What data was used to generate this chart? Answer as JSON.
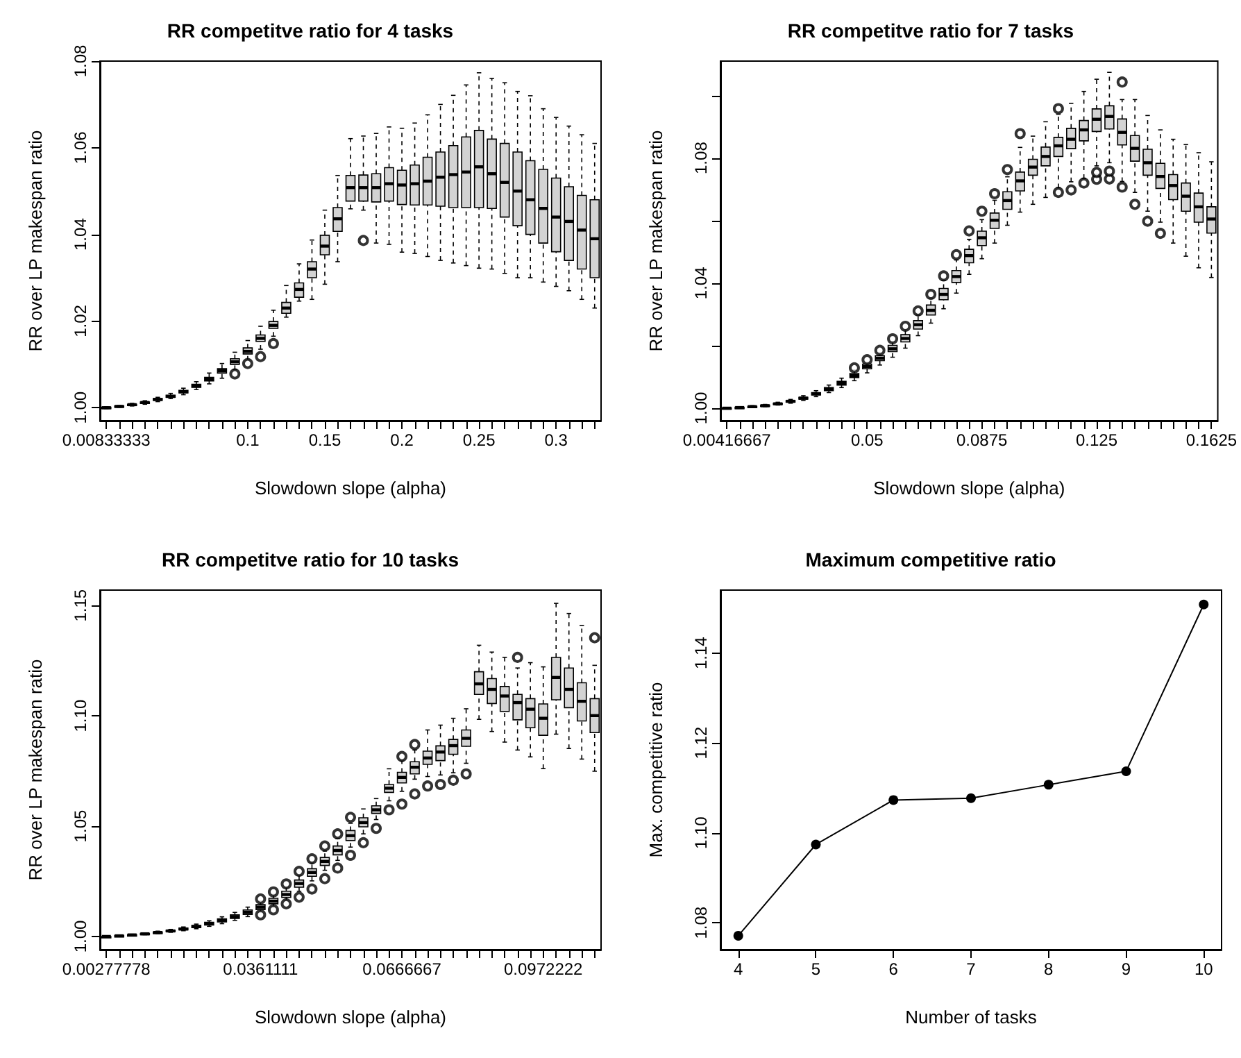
{
  "chart_data": [
    {
      "type": "box",
      "title": "RR competitve ratio for 4 tasks",
      "xlabel": "Slowdown slope (alpha)",
      "ylabel": "RR over LP makespan ratio",
      "categories": [
        "0.00833333",
        null,
        null,
        null,
        null,
        null,
        null,
        null,
        null,
        null,
        null,
        "0.1",
        null,
        null,
        null,
        null,
        null,
        "0.15",
        null,
        null,
        null,
        null,
        null,
        "0.2",
        null,
        null,
        null,
        null,
        null,
        "0.25",
        null,
        null,
        null,
        null,
        null,
        "0.3",
        null,
        null,
        null
      ],
      "ylim": [
        0.997,
        1.08
      ],
      "yticks": [
        {
          "value": 1,
          "label": "1.00"
        },
        1.02,
        1.04,
        1.06,
        1.08
      ],
      "series": [
        {
          "color": "#d3d3d3",
          "boxes": [
            {
              "low": 0.9998,
              "q1": 0.9999,
              "median": 1.0,
              "q3": 1.0001,
              "high": 1.0002
            },
            {
              "low": 1.0001,
              "q1": 1.0002,
              "median": 1.0003,
              "q3": 1.0004,
              "high": 1.0005
            },
            {
              "low": 1.0004,
              "q1": 1.0005,
              "median": 1.0007,
              "q3": 1.0008,
              "high": 1.001
            },
            {
              "low": 1.0008,
              "q1": 1.001,
              "median": 1.0012,
              "q3": 1.0013,
              "high": 1.0016
            },
            {
              "low": 1.0014,
              "q1": 1.0017,
              "median": 1.0019,
              "q3": 1.0021,
              "high": 1.0024
            },
            {
              "low": 1.0021,
              "q1": 1.0024,
              "median": 1.0026,
              "q3": 1.0029,
              "high": 1.0033
            },
            {
              "low": 1.003,
              "q1": 1.0034,
              "median": 1.0037,
              "q3": 1.004,
              "high": 1.0045
            },
            {
              "low": 1.0042,
              "q1": 1.0047,
              "median": 1.005,
              "q3": 1.0054,
              "high": 1.006
            },
            {
              "low": 1.0055,
              "q1": 1.0062,
              "median": 1.0066,
              "q3": 1.007,
              "high": 1.008
            },
            {
              "low": 1.0068,
              "q1": 1.008,
              "median": 1.0085,
              "q3": 1.009,
              "high": 1.0102
            },
            {
              "low": 1.0088,
              "q1": 1.01,
              "median": 1.0106,
              "q3": 1.0113,
              "high": 1.0128,
              "outliers": [
                1.0078
              ]
            },
            {
              "low": 1.011,
              "q1": 1.0124,
              "median": 1.013,
              "q3": 1.0138,
              "high": 1.0155,
              "outliers": [
                1.0102
              ]
            },
            {
              "low": 1.0135,
              "q1": 1.0153,
              "median": 1.016,
              "q3": 1.0168,
              "high": 1.0188,
              "outliers": [
                1.0118
              ]
            },
            {
              "low": 1.0165,
              "q1": 1.0183,
              "median": 1.019,
              "q3": 1.0199,
              "high": 1.0225,
              "outliers": [
                1.0148
              ]
            },
            {
              "low": 1.0209,
              "q1": 1.0218,
              "median": 1.023,
              "q3": 1.0243,
              "high": 1.0282
            },
            {
              "low": 1.0246,
              "q1": 1.0255,
              "median": 1.0273,
              "q3": 1.0288,
              "high": 1.0332
            },
            {
              "low": 1.025,
              "q1": 1.03,
              "median": 1.032,
              "q3": 1.0337,
              "high": 1.0387
            },
            {
              "low": 1.0285,
              "q1": 1.0353,
              "median": 1.0373,
              "q3": 1.0398,
              "high": 1.0456
            },
            {
              "low": 1.0337,
              "q1": 1.0407,
              "median": 1.0436,
              "q3": 1.0462,
              "high": 1.0536
            },
            {
              "low": 1.0459,
              "q1": 1.0477,
              "median": 1.0508,
              "q3": 1.0536,
              "high": 1.0621
            },
            {
              "low": 1.0456,
              "q1": 1.0477,
              "median": 1.0508,
              "q3": 1.0537,
              "high": 1.0627,
              "outliers": [
                1.0386
              ]
            },
            {
              "low": 1.038,
              "q1": 1.0475,
              "median": 1.0508,
              "q3": 1.054,
              "high": 1.0633
            },
            {
              "low": 1.0377,
              "q1": 1.0477,
              "median": 1.0517,
              "q3": 1.0554,
              "high": 1.0648
            },
            {
              "low": 1.0359,
              "q1": 1.0469,
              "median": 1.0514,
              "q3": 1.0548,
              "high": 1.0645
            },
            {
              "low": 1.0356,
              "q1": 1.0468,
              "median": 1.0517,
              "q3": 1.056,
              "high": 1.0657
            },
            {
              "low": 1.0349,
              "q1": 1.0468,
              "median": 1.0523,
              "q3": 1.0578,
              "high": 1.0676
            },
            {
              "low": 1.034,
              "q1": 1.0465,
              "median": 1.0532,
              "q3": 1.059,
              "high": 1.07
            },
            {
              "low": 1.0334,
              "q1": 1.0462,
              "median": 1.0538,
              "q3": 1.0605,
              "high": 1.0721
            },
            {
              "low": 1.0328,
              "q1": 1.0462,
              "median": 1.0544,
              "q3": 1.0625,
              "high": 1.0745
            },
            {
              "low": 1.0322,
              "q1": 1.0462,
              "median": 1.0556,
              "q3": 1.064,
              "high": 1.0773
            },
            {
              "low": 1.032,
              "q1": 1.046,
              "median": 1.054,
              "q3": 1.062,
              "high": 1.076
            },
            {
              "low": 1.031,
              "q1": 1.044,
              "median": 1.052,
              "q3": 1.061,
              "high": 1.075
            },
            {
              "low": 1.03,
              "q1": 1.042,
              "median": 1.05,
              "q3": 1.059,
              "high": 1.073
            },
            {
              "low": 1.03,
              "q1": 1.04,
              "median": 1.048,
              "q3": 1.057,
              "high": 1.072
            },
            {
              "low": 1.029,
              "q1": 1.038,
              "median": 1.046,
              "q3": 1.055,
              "high": 1.069
            },
            {
              "low": 1.028,
              "q1": 1.036,
              "median": 1.044,
              "q3": 1.053,
              "high": 1.067
            },
            {
              "low": 1.027,
              "q1": 1.034,
              "median": 1.043,
              "q3": 1.051,
              "high": 1.065
            },
            {
              "low": 1.025,
              "q1": 1.032,
              "median": 1.041,
              "q3": 1.049,
              "high": 1.063
            },
            {
              "low": 1.023,
              "q1": 1.03,
              "median": 1.039,
              "q3": 1.048,
              "high": 1.061
            }
          ]
        }
      ]
    },
    {
      "type": "box",
      "title": "RR competitve ratio for 7 tasks",
      "xlabel": "Slowdown slope (alpha)",
      "ylabel": "RR over LP makespan ratio",
      "categories": [
        "0.00416667",
        null,
        null,
        null,
        null,
        null,
        null,
        null,
        null,
        null,
        null,
        "0.05",
        null,
        null,
        null,
        null,
        null,
        null,
        null,
        null,
        "0.0875",
        null,
        null,
        null,
        null,
        null,
        null,
        null,
        null,
        "0.125",
        null,
        null,
        null,
        null,
        null,
        null,
        null,
        null,
        "0.1625"
      ],
      "ylim": [
        0.996,
        1.111
      ],
      "yticks": [
        {
          "value": 1,
          "label": "1.00"
        },
        {
          "value": 1.02,
          "label": null
        },
        1.04,
        {
          "value": 1.06,
          "label": null
        },
        1.08,
        {
          "value": 1.1,
          "label": null
        }
      ],
      "series": [
        {
          "color": "#d3d3d3",
          "boxes": [
            {
              "low": 0.9999,
              "q1": 1.0,
              "median": 1.0,
              "q3": 1.0001,
              "high": 1.0002
            },
            {
              "low": 1.0,
              "q1": 1.0001,
              "median": 1.0002,
              "q3": 1.0003,
              "high": 1.0004
            },
            {
              "low": 1.0002,
              "q1": 1.0004,
              "median": 1.0005,
              "q3": 1.0006,
              "high": 1.0008
            },
            {
              "low": 1.0005,
              "q1": 1.0007,
              "median": 1.0008,
              "q3": 1.001,
              "high": 1.0012
            },
            {
              "low": 1.001,
              "q1": 1.0012,
              "median": 1.0014,
              "q3": 1.0016,
              "high": 1.0019
            },
            {
              "low": 1.0016,
              "q1": 1.002,
              "median": 1.0022,
              "q3": 1.0024,
              "high": 1.0028
            },
            {
              "low": 1.0025,
              "q1": 1.0029,
              "median": 1.0032,
              "q3": 1.0035,
              "high": 1.004
            },
            {
              "low": 1.0037,
              "q1": 1.0042,
              "median": 1.0046,
              "q3": 1.005,
              "high": 1.0056
            },
            {
              "low": 1.005,
              "q1": 1.0056,
              "median": 1.0061,
              "q3": 1.0066,
              "high": 1.0074
            },
            {
              "low": 1.0066,
              "q1": 1.0074,
              "median": 1.008,
              "q3": 1.0086,
              "high": 1.0096
            },
            {
              "low": 1.0088,
              "q1": 1.0098,
              "median": 1.0104,
              "q3": 1.0111,
              "high": 1.0122,
              "outliers": [
                1.0129
              ]
            },
            {
              "low": 1.0113,
              "q1": 1.0126,
              "median": 1.0133,
              "q3": 1.0141,
              "high": 1.0147,
              "outliers": [
                1.0155
              ]
            },
            {
              "low": 1.0138,
              "q1": 1.0152,
              "median": 1.016,
              "q3": 1.0168,
              "high": 1.0177,
              "outliers": [
                1.0185
              ]
            },
            {
              "low": 1.0163,
              "q1": 1.0181,
              "median": 1.019,
              "q3": 1.0201,
              "high": 1.0213,
              "outliers": [
                1.0222
              ]
            },
            {
              "low": 1.0192,
              "q1": 1.0212,
              "median": 1.0223,
              "q3": 1.0235,
              "high": 1.0252,
              "outliers": [
                1.0262
              ]
            },
            {
              "low": 1.0232,
              "q1": 1.0253,
              "median": 1.0267,
              "q3": 1.028,
              "high": 1.0298,
              "outliers": [
                1.0311
              ]
            },
            {
              "low": 1.0272,
              "q1": 1.0298,
              "median": 1.0313,
              "q3": 1.033,
              "high": 1.0352,
              "outliers": [
                1.0364
              ]
            },
            {
              "low": 1.0318,
              "q1": 1.0347,
              "median": 1.0364,
              "q3": 1.0383,
              "high": 1.0409,
              "outliers": [
                1.0423
              ]
            },
            {
              "low": 1.0368,
              "q1": 1.0402,
              "median": 1.0421,
              "q3": 1.044,
              "high": 1.0474,
              "outliers": [
                1.0491
              ]
            },
            {
              "low": 1.0428,
              "q1": 1.0465,
              "median": 1.0488,
              "q3": 1.0508,
              "high": 1.054,
              "outliers": [
                1.0567
              ]
            },
            {
              "low": 1.0478,
              "q1": 1.052,
              "median": 1.0545,
              "q3": 1.0566,
              "high": 1.0603,
              "outliers": [
                1.063
              ]
            },
            {
              "low": 1.0528,
              "q1": 1.0575,
              "median": 1.0601,
              "q3": 1.0624,
              "high": 1.0665,
              "outliers": [
                1.0686
              ]
            },
            {
              "low": 1.0585,
              "q1": 1.0636,
              "median": 1.0664,
              "q3": 1.0692,
              "high": 1.074,
              "outliers": [
                1.0763
              ]
            },
            {
              "low": 1.0627,
              "q1": 1.0695,
              "median": 1.0727,
              "q3": 1.0755,
              "high": 1.0834,
              "outliers": [
                1.0878
              ]
            },
            {
              "low": 1.0652,
              "q1": 1.0745,
              "median": 1.0771,
              "q3": 1.0796,
              "high": 1.087
            },
            {
              "low": 1.0674,
              "q1": 1.0775,
              "median": 1.0805,
              "q3": 1.0835,
              "high": 1.0916
            },
            {
              "low": 1.0705,
              "q1": 1.0805,
              "median": 1.0839,
              "q3": 1.0866,
              "high": 1.094,
              "outliers": [
                1.069,
                1.0958
              ]
            },
            {
              "low": 1.0724,
              "q1": 1.083,
              "median": 1.086,
              "q3": 1.0895,
              "high": 1.0975,
              "outliers": [
                1.0698
              ]
            },
            {
              "low": 1.0735,
              "q1": 1.0855,
              "median": 1.089,
              "q3": 1.092,
              "high": 1.1013,
              "outliers": [
                1.072
              ]
            },
            {
              "low": 1.0775,
              "q1": 1.0885,
              "median": 1.0924,
              "q3": 1.0957,
              "high": 1.1052,
              "outliers": [
                1.0732,
                1.0754
              ]
            },
            {
              "low": 1.0785,
              "q1": 1.0893,
              "median": 1.0933,
              "q3": 1.0967,
              "high": 1.1074,
              "outliers": [
                1.0733,
                1.0758
              ]
            },
            {
              "low": 1.0725,
              "q1": 1.0842,
              "median": 1.0882,
              "q3": 1.0925,
              "high": 1.0987,
              "outliers": [
                1.0707,
                1.1043
              ]
            },
            {
              "low": 1.069,
              "q1": 1.079,
              "median": 1.0831,
              "q3": 1.0872,
              "high": 1.0987,
              "outliers": [
                1.0652
              ]
            },
            {
              "low": 1.063,
              "q1": 1.0745,
              "median": 1.0785,
              "q3": 1.0828,
              "high": 1.0936,
              "outliers": [
                1.0598
              ]
            },
            {
              "low": 1.0595,
              "q1": 1.0703,
              "median": 1.0741,
              "q3": 1.0783,
              "high": 1.089,
              "outliers": [
                1.0559
              ]
            },
            {
              "low": 1.0528,
              "q1": 1.0667,
              "median": 1.0712,
              "q3": 1.0747,
              "high": 1.086
            },
            {
              "low": 1.0486,
              "q1": 1.063,
              "median": 1.0678,
              "q3": 1.072,
              "high": 1.0843
            },
            {
              "low": 1.0449,
              "q1": 1.0595,
              "median": 1.0644,
              "q3": 1.0688,
              "high": 1.0817
            },
            {
              "low": 1.0418,
              "q1": 1.056,
              "median": 1.0605,
              "q3": 1.0644,
              "high": 1.0788
            }
          ]
        }
      ]
    },
    {
      "type": "box",
      "title": "RR competitve ratio for 10 tasks",
      "xlabel": "Slowdown slope (alpha)",
      "ylabel": "RR over LP makespan ratio",
      "categories": [
        "0.00277778",
        null,
        null,
        null,
        null,
        null,
        null,
        null,
        null,
        null,
        null,
        null,
        "0.0361111",
        null,
        null,
        null,
        null,
        null,
        null,
        null,
        null,
        null,
        null,
        "0.0666667",
        null,
        null,
        null,
        null,
        null,
        null,
        null,
        null,
        null,
        null,
        "0.0972222",
        null,
        null,
        null,
        null
      ],
      "ylim": [
        0.994,
        1.157
      ],
      "yticks": [
        {
          "value": 1,
          "label": "1.00"
        },
        1.05,
        {
          "value": 1.1,
          "label": "1.10"
        },
        1.15
      ],
      "series": [
        {
          "color": "#d3d3d3",
          "boxes": [
            {
              "low": 0.9999,
              "q1": 1.0,
              "median": 1.0,
              "q3": 1.0,
              "high": 1.0001
            },
            {
              "low": 1.0001,
              "q1": 1.0002,
              "median": 1.0003,
              "q3": 1.0004,
              "high": 1.0005
            },
            {
              "low": 1.0004,
              "q1": 1.0006,
              "median": 1.0007,
              "q3": 1.0008,
              "high": 1.001
            },
            {
              "low": 1.0008,
              "q1": 1.001,
              "median": 1.0012,
              "q3": 1.0014,
              "high": 1.0016
            },
            {
              "low": 1.0013,
              "q1": 1.0016,
              "median": 1.0018,
              "q3": 1.002,
              "high": 1.0024
            },
            {
              "low": 1.0019,
              "q1": 1.0022,
              "median": 1.0025,
              "q3": 1.0028,
              "high": 1.0032
            },
            {
              "low": 1.0026,
              "q1": 1.003,
              "median": 1.0034,
              "q3": 1.0038,
              "high": 1.0043
            },
            {
              "low": 1.0035,
              "q1": 1.004,
              "median": 1.0045,
              "q3": 1.005,
              "high": 1.0056
            },
            {
              "low": 1.0046,
              "q1": 1.0052,
              "median": 1.0058,
              "q3": 1.0064,
              "high": 1.0071
            },
            {
              "low": 1.0058,
              "q1": 1.0066,
              "median": 1.0073,
              "q3": 1.008,
              "high": 1.0089
            },
            {
              "low": 1.0073,
              "q1": 1.0082,
              "median": 1.009,
              "q3": 1.0098,
              "high": 1.0109
            },
            {
              "low": 1.009,
              "q1": 1.01,
              "median": 1.011,
              "q3": 1.012,
              "high": 1.0133
            },
            {
              "low": 1.011,
              "q1": 1.0122,
              "median": 1.0133,
              "q3": 1.0144,
              "high": 1.016,
              "outliers": [
                1.0098,
                1.017
              ]
            },
            {
              "low": 1.0134,
              "q1": 1.0148,
              "median": 1.016,
              "q3": 1.0173,
              "high": 1.019,
              "outliers": [
                1.0121,
                1.0202
              ]
            },
            {
              "low": 1.0162,
              "q1": 1.0177,
              "median": 1.019,
              "q3": 1.0205,
              "high": 1.0224,
              "outliers": [
                1.0148,
                1.0238
              ]
            },
            {
              "low": 1.0205,
              "q1": 1.0223,
              "median": 1.024,
              "q3": 1.0256,
              "high": 1.0278,
              "outliers": [
                1.0178,
                1.0295
              ]
            },
            {
              "low": 1.0252,
              "q1": 1.0273,
              "median": 1.029,
              "q3": 1.0307,
              "high": 1.0333,
              "outliers": [
                1.0215,
                1.0352
              ]
            },
            {
              "low": 1.03,
              "q1": 1.0322,
              "median": 1.034,
              "q3": 1.0358,
              "high": 1.0387,
              "outliers": [
                1.0262,
                1.041
              ]
            },
            {
              "low": 1.0345,
              "q1": 1.037,
              "median": 1.039,
              "q3": 1.041,
              "high": 1.0443,
              "outliers": [
                1.031,
                1.0465
              ]
            },
            {
              "low": 1.0405,
              "q1": 1.0435,
              "median": 1.0457,
              "q3": 1.048,
              "high": 1.0513,
              "outliers": [
                1.0368,
                1.054
              ]
            },
            {
              "low": 1.0465,
              "q1": 1.0497,
              "median": 1.0516,
              "q3": 1.0538,
              "high": 1.0578,
              "outliers": [
                1.0425
              ]
            },
            {
              "low": 1.053,
              "q1": 1.0558,
              "median": 1.0574,
              "q3": 1.0592,
              "high": 1.0625,
              "outliers": [
                1.049
              ]
            },
            {
              "low": 1.0615,
              "q1": 1.0653,
              "median": 1.0672,
              "q3": 1.0689,
              "high": 1.076,
              "outliers": [
                1.0574
              ]
            },
            {
              "low": 1.0658,
              "q1": 1.0696,
              "median": 1.0721,
              "q3": 1.0744,
              "high": 1.0795,
              "outliers": [
                1.06,
                1.0816
              ]
            },
            {
              "low": 1.0713,
              "q1": 1.0737,
              "median": 1.0767,
              "q3": 1.0792,
              "high": 1.0845,
              "outliers": [
                1.0646,
                1.087
              ]
            },
            {
              "low": 1.0725,
              "q1": 1.078,
              "median": 1.0809,
              "q3": 1.084,
              "high": 1.0936,
              "outliers": [
                1.0682
              ]
            },
            {
              "low": 1.0732,
              "q1": 1.0797,
              "median": 1.0836,
              "q3": 1.0864,
              "high": 1.0958,
              "outliers": [
                1.0689
              ]
            },
            {
              "low": 1.0742,
              "q1": 1.0826,
              "median": 1.0865,
              "q3": 1.0893,
              "high": 1.0989,
              "outliers": [
                1.0708
              ]
            },
            {
              "low": 1.0785,
              "q1": 1.0862,
              "median": 1.0898,
              "q3": 1.0936,
              "high": 1.1032,
              "outliers": [
                1.0737
              ]
            },
            {
              "low": 1.0984,
              "q1": 1.1097,
              "median": 1.1145,
              "q3": 1.12,
              "high": 1.132
            },
            {
              "low": 1.0929,
              "q1": 1.1056,
              "median": 1.112,
              "q3": 1.1169,
              "high": 1.1289
            },
            {
              "low": 1.0881,
              "q1": 1.102,
              "median": 1.109,
              "q3": 1.1133,
              "high": 1.1265
            },
            {
              "low": 1.0845,
              "q1": 1.0982,
              "median": 1.106,
              "q3": 1.1097,
              "high": 1.1217,
              "outliers": [
                1.1265
              ]
            },
            {
              "low": 1.0814,
              "q1": 1.0946,
              "median": 1.103,
              "q3": 1.1078,
              "high": 1.1241
            },
            {
              "low": 1.0761,
              "q1": 1.0912,
              "median": 1.0989,
              "q3": 1.1054,
              "high": 1.1222
            },
            {
              "low": 1.0917,
              "q1": 1.1073,
              "median": 1.1174,
              "q3": 1.1265,
              "high": 1.151
            },
            {
              "low": 1.0852,
              "q1": 1.1037,
              "median": 1.112,
              "q3": 1.1217,
              "high": 1.1464
            },
            {
              "low": 1.0804,
              "q1": 1.0977,
              "median": 1.1066,
              "q3": 1.115,
              "high": 1.1409
            },
            {
              "low": 1.0749,
              "q1": 1.0924,
              "median": 1.1001,
              "q3": 1.1078,
              "high": 1.1229,
              "outliers": [
                1.1354
              ]
            }
          ]
        }
      ]
    },
    {
      "type": "line",
      "title": "Maximum competitive ratio",
      "xlabel": "Number of tasks",
      "ylabel": "Max. competitive ratio",
      "x": [
        4,
        5,
        6,
        7,
        8,
        9,
        10
      ],
      "values": [
        1.0771,
        1.0974,
        1.1073,
        1.1077,
        1.1107,
        1.1137,
        1.1508
      ],
      "color": "#000000",
      "marker": "circle",
      "xlim": [
        3.77,
        10.23
      ],
      "xticks": [
        4,
        5,
        6,
        7,
        8,
        9,
        10
      ],
      "ylim": [
        1.074,
        1.154
      ],
      "yticks": [
        1.08,
        {
          "value": 1.1,
          "label": "1.10"
        },
        1.12,
        1.14
      ]
    }
  ]
}
